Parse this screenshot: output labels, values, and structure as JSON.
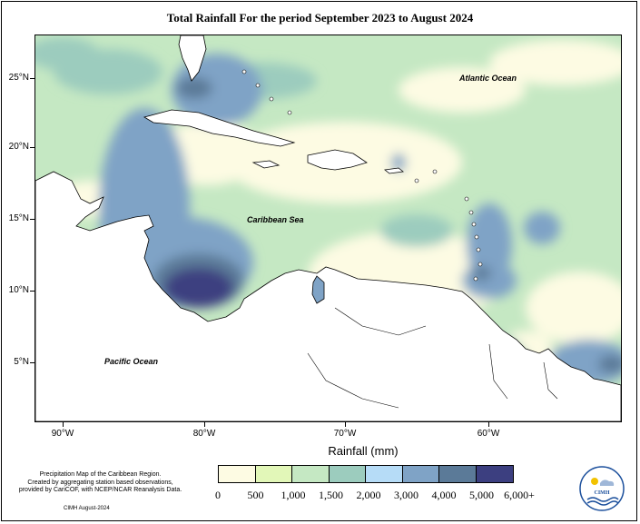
{
  "title": "Total Rainfall For the period September 2023 to August 2024",
  "axes": {
    "lat_labels": [
      "25°N",
      "20°N",
      "15°N",
      "10°N",
      "5°N"
    ],
    "lon_labels": [
      "90°W",
      "80°W",
      "70°W",
      "60°W"
    ]
  },
  "labels": {
    "atlantic": "Atlantic Ocean",
    "caribbean": "Caribbean Sea",
    "pacific": "Pacific Ocean"
  },
  "legend": {
    "title": "Rainfall (mm)",
    "tick_labels": [
      "0",
      "500",
      "1,000",
      "1,500",
      "2,000",
      "3,000",
      "4,000",
      "5,000",
      "6,000+"
    ],
    "colors": [
      "#fdfbe3",
      "#e2f7b8",
      "#c5e8c3",
      "#9cccbe",
      "#b6dcf7",
      "#7fa3c6",
      "#5b7a98",
      "#3c3f80"
    ]
  },
  "footnote": {
    "lines": [
      "Precipitation Map of the Caribbean Region.",
      "Created by aggregating station based observations,",
      "provided by CariCOF, with NCEP/NCAR Reanalysis Data."
    ]
  },
  "credit": "CIMH August-2024",
  "logo": {
    "text": "CIMH"
  }
}
